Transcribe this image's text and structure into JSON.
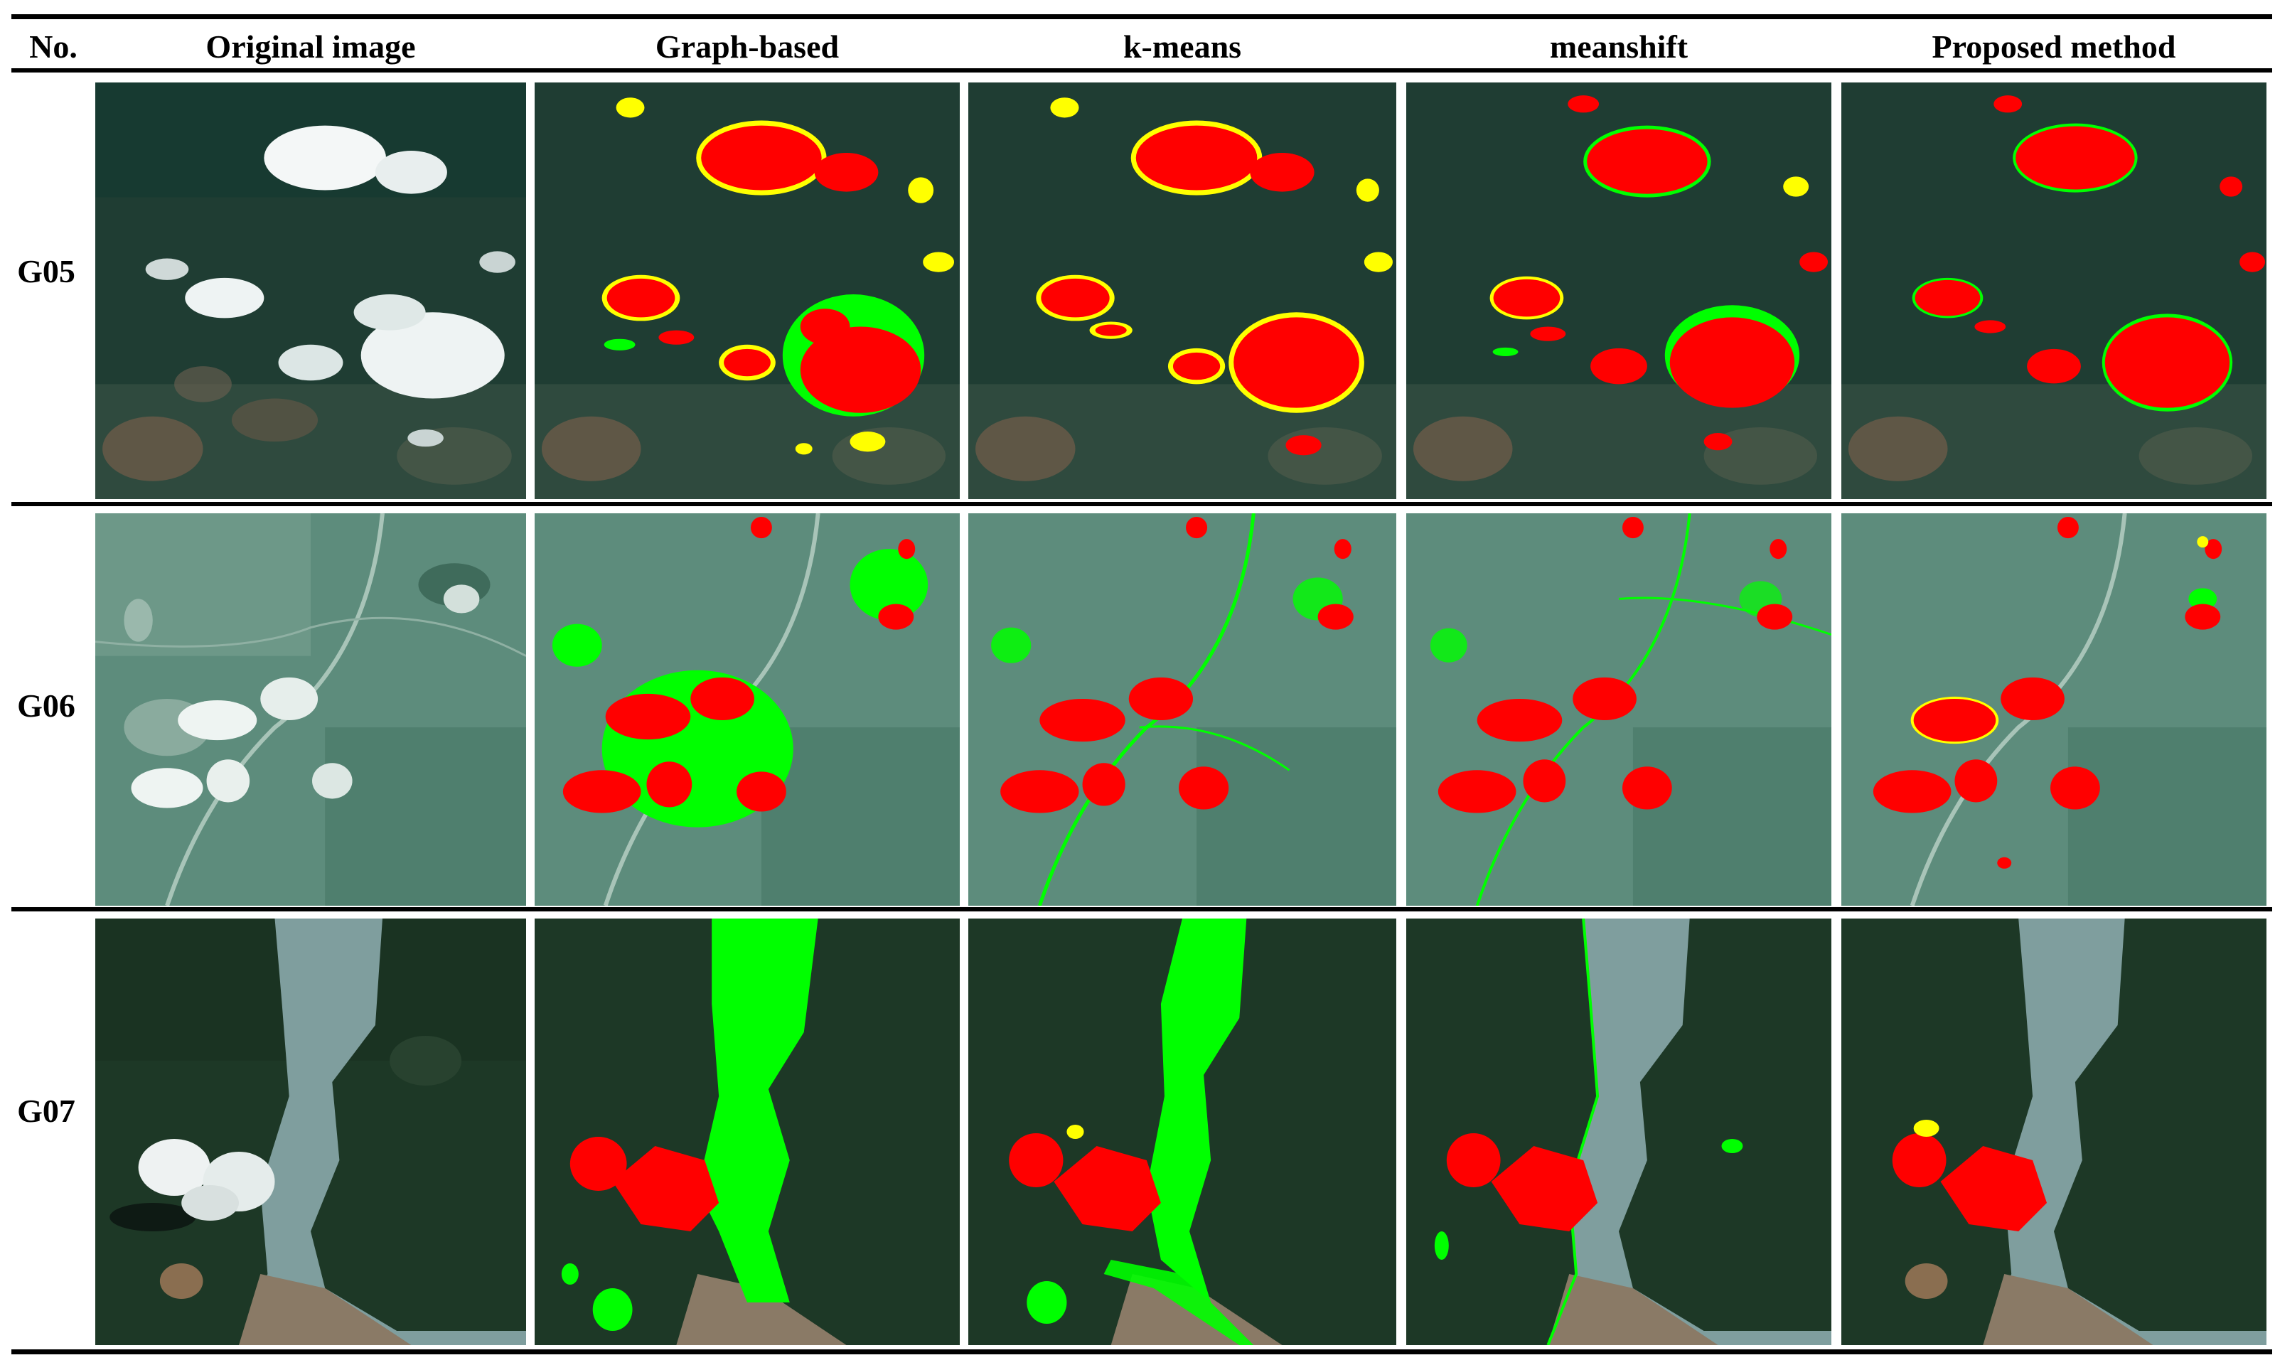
{
  "header": {
    "no": "No.",
    "columns": [
      "Original image",
      "Graph-based",
      "k-means",
      "meanshift",
      "Proposed method"
    ]
  },
  "rows": [
    {
      "label": "G05",
      "scene": "forest-scattered-clouds"
    },
    {
      "label": "G06",
      "scene": "farmland-clouds"
    },
    {
      "label": "G07",
      "scene": "river-dark-forest"
    }
  ],
  "legend_colors": {
    "cloud_detected": "#ff0000",
    "false_positive": "#00ff00",
    "missed_cloud": "#ffff00"
  }
}
